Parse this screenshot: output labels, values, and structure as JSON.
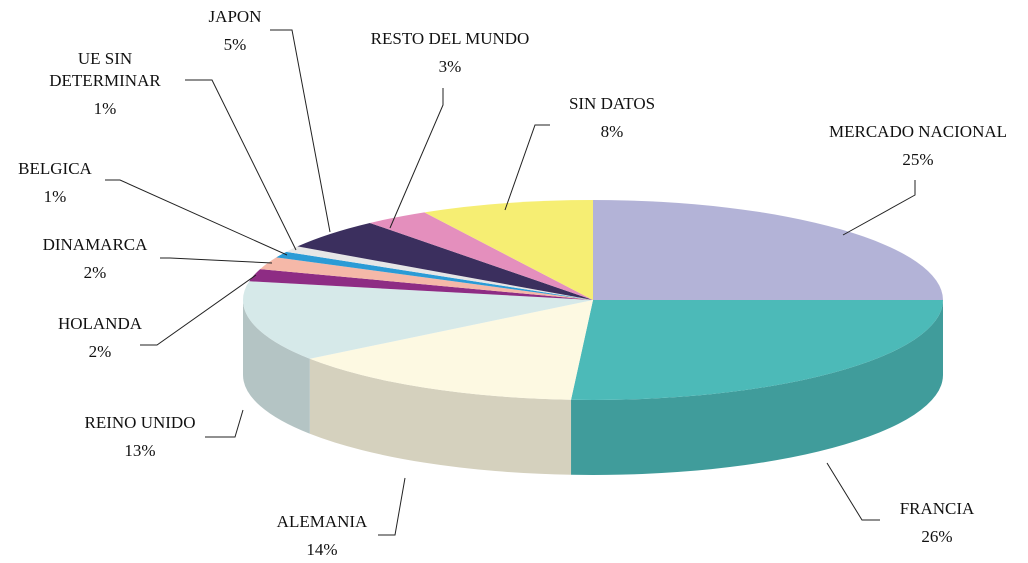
{
  "chart_data": {
    "type": "pie3d",
    "categories": [
      "MERCADO NACIONAL",
      "FRANCIA",
      "ALEMANIA",
      "REINO UNIDO",
      "HOLANDA",
      "DINAMARCA",
      "BELGICA",
      "UE SIN\nDETERMINAR",
      "JAPON",
      "RESTO DEL MUNDO",
      "SIN DATOS"
    ],
    "values": [
      25,
      26,
      14,
      13,
      2,
      2,
      1,
      1,
      5,
      3,
      8
    ],
    "value_labels": [
      "25%",
      "26%",
      "14%",
      "13%",
      "2%",
      "2%",
      "1%",
      "1%",
      "5%",
      "3%",
      "8%"
    ],
    "colors": [
      "#b3b3d7",
      "#4cbab8",
      "#fdf9e2",
      "#d6e9e9",
      "#8e2c84",
      "#f5b8a8",
      "#2b9bd6",
      "#e6e6e6",
      "#3b2f5e",
      "#e48fbd",
      "#f6ee73"
    ]
  }
}
